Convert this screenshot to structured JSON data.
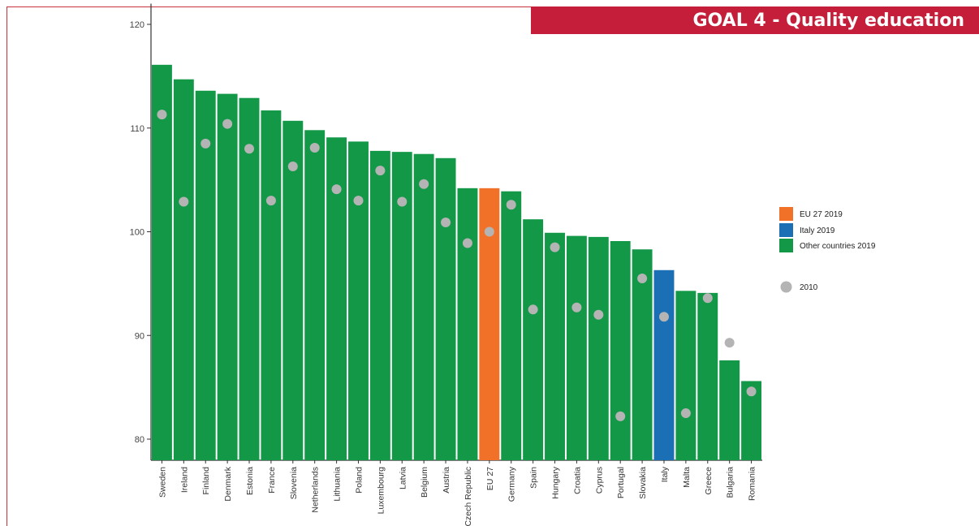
{
  "banner": {
    "title": "GOAL 4 - Quality education"
  },
  "colors": {
    "eu": "#f07127",
    "italy": "#1a6fb5",
    "other": "#139848",
    "marker2010": "#b4b4b4",
    "banner": "#c41e3a"
  },
  "chart_data": {
    "type": "bar",
    "title": "",
    "xlabel": "",
    "ylabel": "",
    "ylim": [
      78,
      122
    ],
    "yticks": [
      80,
      90,
      100,
      110,
      120
    ],
    "grid": false,
    "legend_position": "right",
    "categories": [
      "Sweden",
      "Ireland",
      "Finland",
      "Denmark",
      "Estonia",
      "France",
      "Slovenia",
      "Netherlands",
      "Lithuania",
      "Poland",
      "Luxembourg",
      "Latvia",
      "Belgium",
      "Austria",
      "Czech Republic",
      "EU 27",
      "Germany",
      "Spain",
      "Hungary",
      "Croatia",
      "Cyprus",
      "Portugal",
      "Slovakia",
      "Italy",
      "Malta",
      "Greece",
      "Bulgaria",
      "Romania"
    ],
    "series": [
      {
        "name": "2019",
        "values": [
          116.1,
          114.7,
          113.6,
          113.3,
          112.9,
          111.7,
          110.7,
          109.8,
          109.1,
          108.7,
          107.8,
          107.7,
          107.5,
          107.1,
          104.2,
          104.2,
          103.9,
          101.2,
          99.9,
          99.6,
          99.5,
          99.1,
          98.3,
          96.3,
          94.3,
          94.1,
          87.6,
          85.6
        ],
        "groups": [
          "other",
          "other",
          "other",
          "other",
          "other",
          "other",
          "other",
          "other",
          "other",
          "other",
          "other",
          "other",
          "other",
          "other",
          "other",
          "eu",
          "other",
          "other",
          "other",
          "other",
          "other",
          "other",
          "other",
          "italy",
          "other",
          "other",
          "other",
          "other"
        ]
      },
      {
        "name": "2010",
        "values": [
          111.3,
          102.9,
          108.5,
          110.4,
          108.0,
          103.0,
          106.3,
          108.1,
          104.1,
          103.0,
          105.9,
          102.9,
          104.6,
          100.9,
          98.9,
          100.0,
          102.6,
          92.5,
          98.5,
          92.7,
          92.0,
          82.2,
          95.5,
          91.8,
          82.5,
          93.6,
          89.3,
          84.6
        ]
      }
    ],
    "legend": [
      {
        "key": "eu",
        "label": "EU 27 2019"
      },
      {
        "key": "italy",
        "label": "Italy 2019"
      },
      {
        "key": "other",
        "label": "Other countries 2019"
      },
      {
        "key": "marker2010",
        "label": "2010"
      }
    ]
  }
}
